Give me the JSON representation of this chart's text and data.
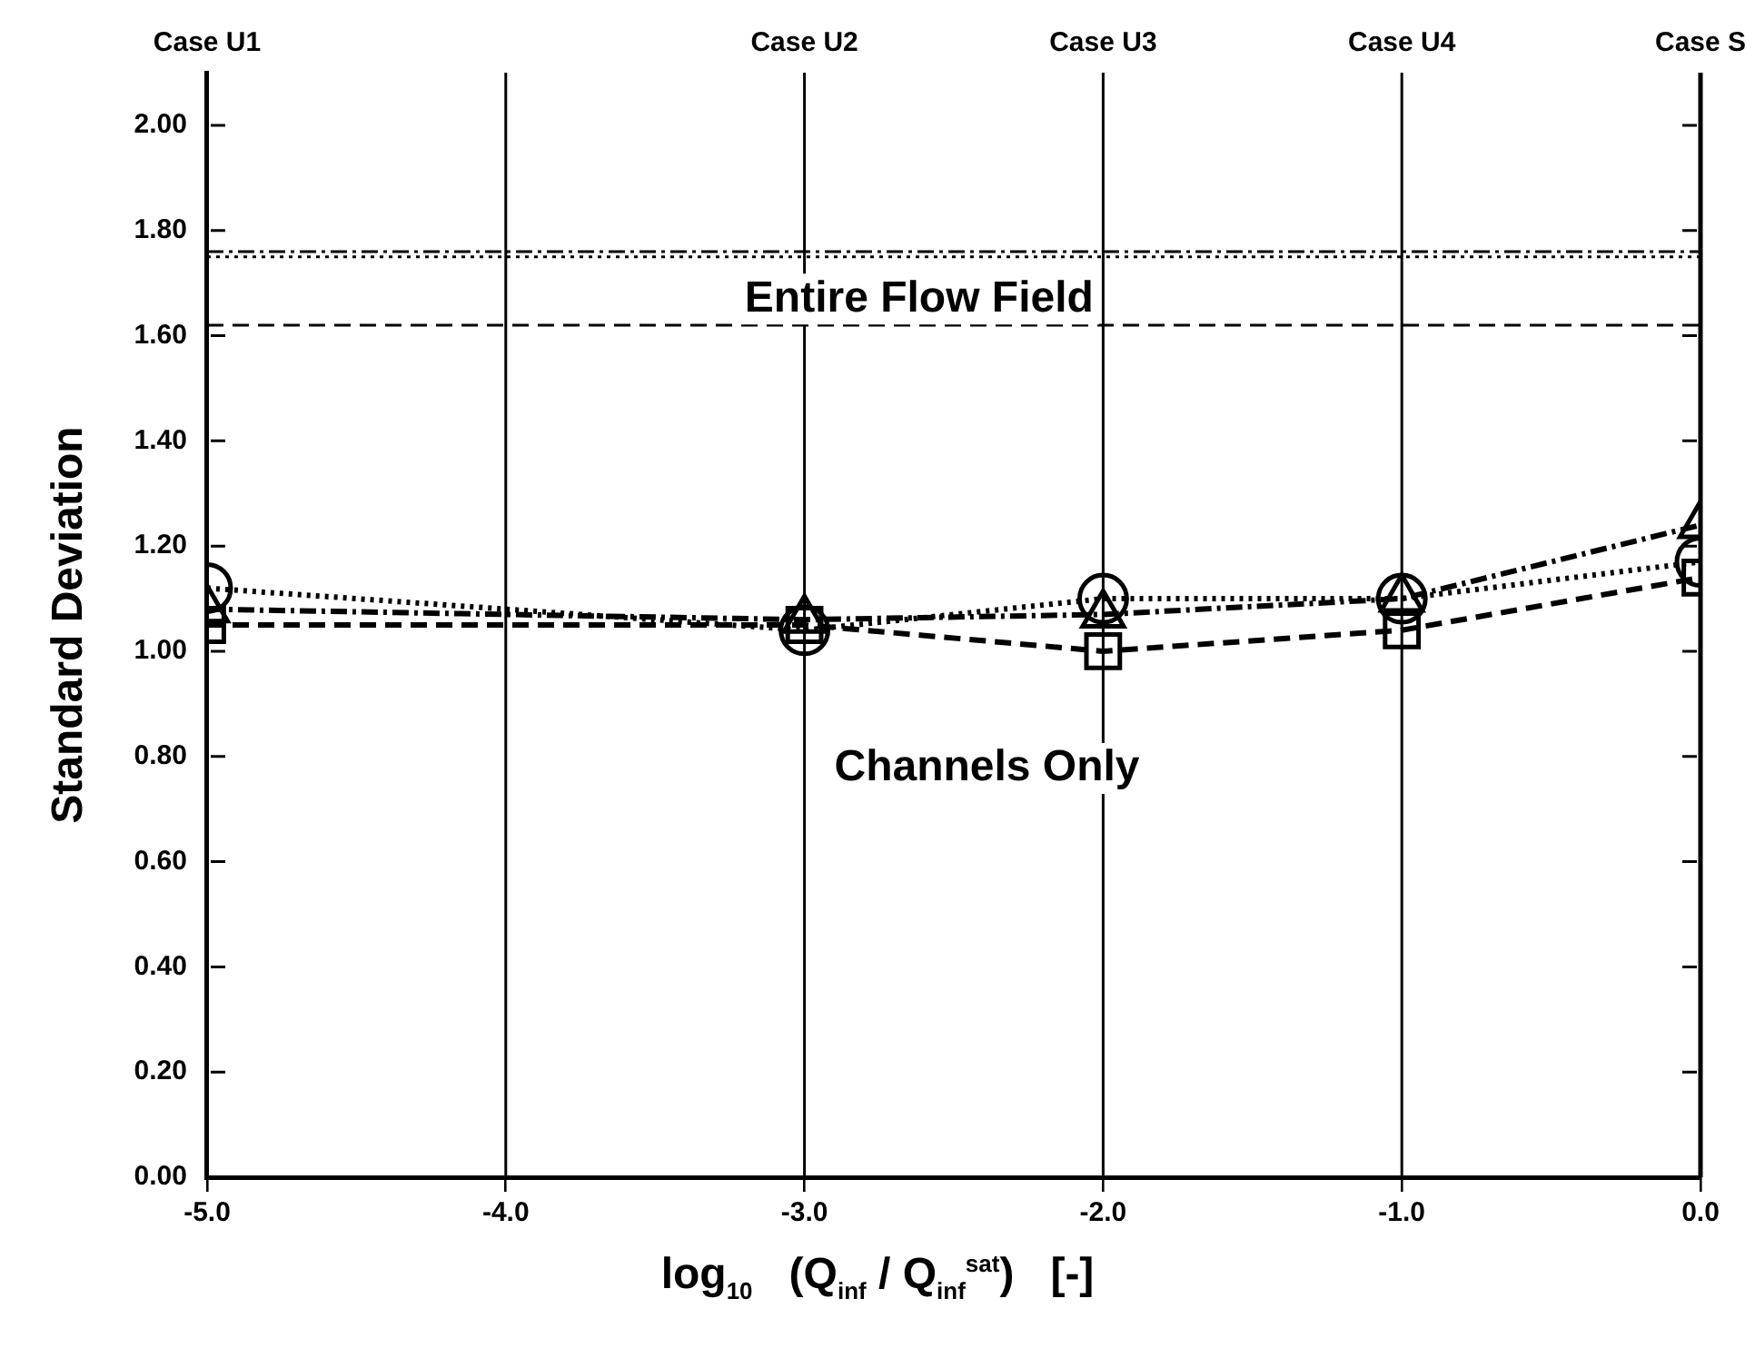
{
  "chart_data": {
    "type": "line",
    "xlabel": "log$_{10}$   (Q$_{inf}$ / Q$_{inf}$$^{sat}$)   [-]",
    "ylabel": "Standard Deviation",
    "x": [
      -5,
      -3,
      -2,
      -1,
      0
    ],
    "series": [
      {
        "color": "#000000",
        "values": [
          1.12,
          1.04,
          1.1,
          1.1,
          1.17
        ],
        "marker": "circle",
        "line_style": "dotted"
      },
      {
        "color": "#000000",
        "values": [
          1.08,
          1.06,
          1.07,
          1.1,
          1.24
        ],
        "marker": "triangle",
        "line_style": "dashdot"
      },
      {
        "color": "#000000",
        "values": [
          1.05,
          1.05,
          1.0,
          1.04,
          1.14
        ],
        "marker": "square",
        "line_style": "dashed"
      }
    ],
    "xlim": [
      -5,
      0
    ],
    "xticks": [
      {
        "value": -5,
        "label": "-5.0"
      },
      {
        "value": -4,
        "label": "-4.0"
      },
      {
        "value": -3,
        "label": "-3.0"
      },
      {
        "value": -2,
        "label": "-2.0"
      },
      {
        "value": -1,
        "label": "-1.0"
      },
      {
        "value": 0,
        "label": "0.0"
      }
    ],
    "ylim": [
      0,
      2.1
    ],
    "yticks": [
      {
        "value": 0,
        "label": "0.00"
      },
      {
        "value": 0.2,
        "label": "0.20"
      },
      {
        "value": 0.4,
        "label": "0.40"
      },
      {
        "value": 0.6,
        "label": "0.60"
      },
      {
        "value": 0.8,
        "label": "0.80"
      },
      {
        "value": 1,
        "label": "1.00"
      },
      {
        "value": 1.2,
        "label": "1.20"
      },
      {
        "value": 1.4,
        "label": "1.40"
      },
      {
        "value": 1.6,
        "label": "1.60"
      },
      {
        "value": 1.8,
        "label": "1.80"
      },
      {
        "value": 2,
        "label": "2.00"
      }
    ],
    "ref_lines": [
      {
        "axis": "y",
        "value": 1.76,
        "color": "#000000",
        "line_style": "dashdot"
      },
      {
        "axis": "y",
        "value": 1.75,
        "color": "#000000",
        "line_style": "dotted"
      },
      {
        "axis": "y",
        "value": 1.62,
        "color": "#000000",
        "line_style": "dashed"
      },
      {
        "axis": "x",
        "value": -4,
        "color": "#000000",
        "line_style": "solid"
      },
      {
        "axis": "x",
        "value": -3,
        "label": "Case U2",
        "color": "#000000",
        "line_style": "solid"
      },
      {
        "axis": "x",
        "value": -2,
        "label": "Case U3",
        "color": "#000000",
        "line_style": "solid"
      },
      {
        "axis": "x",
        "value": -1,
        "label": "Case U4",
        "color": "#000000",
        "line_style": "solid"
      },
      {
        "axis": "x",
        "value": 0,
        "label": "Case S",
        "color": "#000000",
        "line_style": "solid"
      }
    ],
    "annotations": [
      "Entire Flow Field",
      "Channels Only",
      "Case U1"
    ],
    "grid": false,
    "legend": false
  }
}
